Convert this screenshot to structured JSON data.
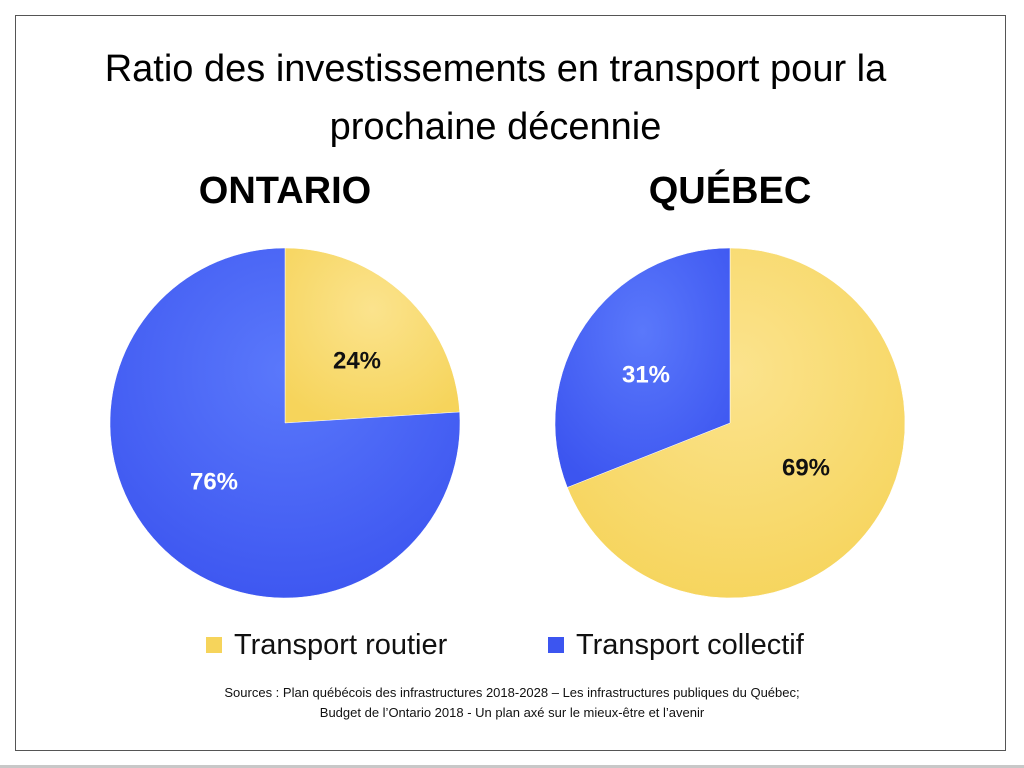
{
  "title_line1": "Ratio des investissements en transport pour la",
  "title_line2": "prochaine décennie",
  "colors": {
    "road": "#f6d45b",
    "road_light": "#fbe38d",
    "transit": "#3c55f0",
    "transit_light": "#5a78fb"
  },
  "legend": {
    "road_label": "Transport routier",
    "transit_label": "Transport collectif"
  },
  "sources": {
    "line1": "Sources : Plan québécois des infrastructures 2018-2028 – Les infrastructures publiques du Québec;",
    "line2": "Budget de l’Ontario 2018 -  Un plan axé sur le mieux-être et l’avenir"
  },
  "chart_data": [
    {
      "type": "pie",
      "title": "ONTARIO",
      "categories": [
        "Transport routier",
        "Transport collectif"
      ],
      "values": [
        24,
        76
      ],
      "labels": [
        "24%",
        "76%"
      ],
      "legend_position": "bottom"
    },
    {
      "type": "pie",
      "title": "QUÉBEC",
      "categories": [
        "Transport routier",
        "Transport collectif"
      ],
      "values": [
        69,
        31
      ],
      "labels": [
        "69%",
        "31%"
      ],
      "legend_position": "bottom"
    }
  ]
}
